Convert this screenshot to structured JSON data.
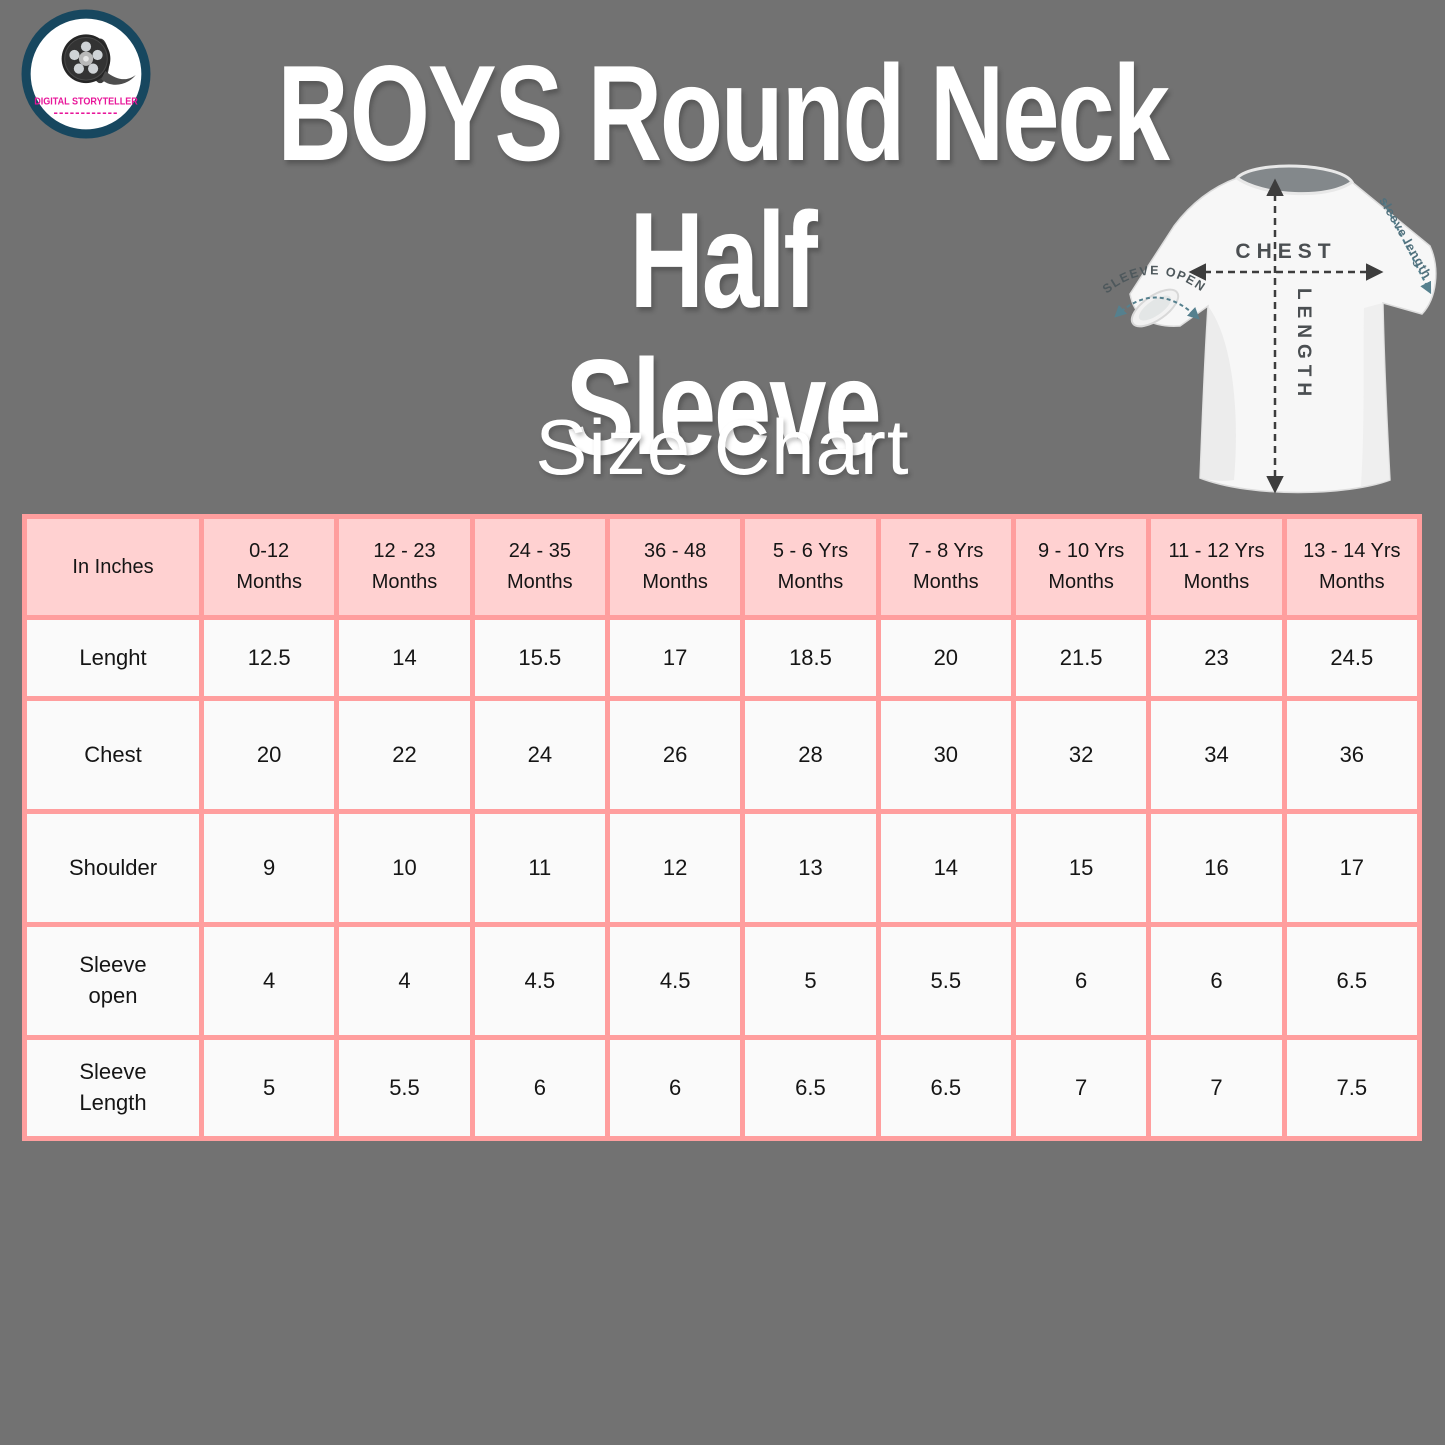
{
  "page": {
    "background_color": "#727272"
  },
  "logo": {
    "name": "DIGITAL STORYTELLER",
    "underline": "------------",
    "ring_color": "#17475f",
    "text_color": "#e8169a"
  },
  "title": {
    "line1": "BOYS Round Neck Half",
    "line2": "Sleeve",
    "color": "#ffffff"
  },
  "tshirt_diagram": {
    "chest_label": "CHEST",
    "length_label": "LENGTH",
    "sleeve_open_label": "SLEEVE OPEN",
    "sleeve_length_label": "sleeve length"
  },
  "chart_data": {
    "type": "table",
    "title": "Size Chart",
    "unit_label": "In Inches",
    "columns": [
      "0-12\nMonths",
      "12 - 23\nMonths",
      "24 - 35\nMonths",
      "36 - 48\nMonths",
      "5 - 6 Yrs\nMonths",
      "7 - 8 Yrs\nMonths",
      "9 - 10 Yrs\nMonths",
      "11 - 12  Yrs\nMonths",
      "13 - 14 Yrs\nMonths"
    ],
    "rows": [
      {
        "label": "Lenght",
        "values": [
          "12.5",
          "14",
          "15.5",
          "17",
          "18.5",
          "20",
          "21.5",
          "23",
          "24.5"
        ]
      },
      {
        "label": "Chest",
        "values": [
          "20",
          "22",
          "24",
          "26",
          "28",
          "30",
          "32",
          "34",
          "36"
        ]
      },
      {
        "label": "Shoulder",
        "values": [
          "9",
          "10",
          "11",
          "12",
          "13",
          "14",
          "15",
          "16",
          "17"
        ]
      },
      {
        "label": "Sleeve\nopen",
        "values": [
          "4",
          "4",
          "4.5",
          "4.5",
          "5",
          "5.5",
          "6",
          "6",
          "6.5"
        ]
      },
      {
        "label": "Sleeve\nLength",
        "values": [
          "5",
          "5.5",
          "6",
          "6",
          "6.5",
          "6.5",
          "7",
          "7",
          "7.5"
        ]
      }
    ],
    "colors": {
      "header_bg": "#ffd1d1",
      "cell_bg": "#fafafa",
      "border": "#ff9e9e",
      "text": "#151515"
    }
  }
}
